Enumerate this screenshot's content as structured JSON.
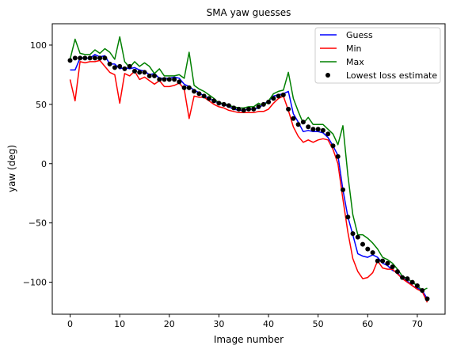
{
  "chart_data": {
    "type": "line",
    "title": "SMA yaw guesses",
    "xlabel": "Image number",
    "ylabel": "yaw (deg)",
    "xlim": [
      -3.6,
      75.6
    ],
    "ylim": [
      -127,
      118
    ],
    "xticks": [
      0,
      10,
      20,
      30,
      40,
      50,
      60,
      70
    ],
    "yticks": [
      -100,
      -50,
      0,
      50,
      100
    ],
    "xtick_labels": [
      "0",
      "10",
      "20",
      "30",
      "40",
      "50",
      "60",
      "70"
    ],
    "ytick_labels": [
      "−100",
      "−50",
      "0",
      "50",
      "100"
    ],
    "grid": false,
    "legend_position": "top-right",
    "x": [
      0,
      1,
      2,
      3,
      4,
      5,
      6,
      7,
      8,
      9,
      10,
      11,
      12,
      13,
      14,
      15,
      16,
      17,
      18,
      19,
      20,
      21,
      22,
      23,
      24,
      25,
      26,
      27,
      28,
      29,
      30,
      31,
      32,
      33,
      34,
      35,
      36,
      37,
      38,
      39,
      40,
      41,
      42,
      43,
      44,
      45,
      46,
      47,
      48,
      49,
      50,
      51,
      52,
      53,
      54,
      55,
      56,
      57,
      58,
      59,
      60,
      61,
      62,
      63,
      64,
      65,
      66,
      67,
      68,
      69,
      70,
      71,
      72
    ],
    "series": [
      {
        "name": "Guess",
        "style": "line",
        "color": "#0000ff",
        "values": [
          79,
          79,
          89,
          89,
          89,
          92,
          90,
          91,
          84,
          84,
          80,
          81,
          80,
          81,
          79,
          78,
          75,
          76,
          72,
          72,
          72,
          73,
          72,
          67,
          65,
          62,
          60,
          57,
          55,
          53,
          51,
          50,
          48,
          46,
          45,
          45,
          46,
          46,
          47,
          50,
          53,
          57,
          58,
          59,
          61,
          42,
          35,
          27,
          28,
          27,
          27,
          26,
          22,
          15,
          7,
          -22,
          -45,
          -60,
          -76,
          -78,
          -79,
          -77,
          -79,
          -84,
          -86,
          -90,
          -92,
          -97,
          -99,
          -103,
          -105,
          -107,
          -114
        ]
      },
      {
        "name": "Min",
        "style": "line",
        "color": "#ff0000",
        "values": [
          71,
          53,
          86,
          85,
          86,
          86,
          87,
          82,
          77,
          75,
          51,
          76,
          74,
          78,
          71,
          73,
          70,
          67,
          70,
          65,
          65,
          66,
          68,
          63,
          38,
          57,
          56,
          56,
          53,
          50,
          48,
          47,
          45,
          44,
          43,
          43,
          43,
          43,
          44,
          44,
          46,
          51,
          55,
          57,
          45,
          31,
          23,
          18,
          20,
          18,
          20,
          21,
          20,
          12,
          0,
          -30,
          -58,
          -80,
          -91,
          -97,
          -96,
          -92,
          -82,
          -88,
          -89,
          -89,
          -93,
          -97,
          -100,
          -103,
          -106,
          -108,
          -117
        ]
      },
      {
        "name": "Max",
        "style": "line",
        "color": "#008000",
        "values": [
          88,
          105,
          93,
          92,
          92,
          96,
          93,
          97,
          94,
          88,
          107,
          86,
          81,
          86,
          82,
          85,
          82,
          76,
          80,
          74,
          74,
          74,
          75,
          72,
          94,
          66,
          63,
          61,
          58,
          55,
          51,
          51,
          49,
          48,
          47,
          47,
          48,
          48,
          51,
          49,
          53,
          59,
          61,
          62,
          77,
          55,
          44,
          34,
          39,
          33,
          33,
          33,
          29,
          25,
          16,
          32,
          -10,
          -43,
          -60,
          -60,
          -63,
          -67,
          -72,
          -79,
          -81,
          -84,
          -89,
          -95,
          -97,
          -100,
          -103,
          -107,
          -105
        ]
      },
      {
        "name": "Lowest loss estimate",
        "style": "scatter",
        "color": "#000000",
        "values": [
          87,
          89,
          89,
          89,
          89,
          89,
          89,
          89,
          84,
          81,
          82,
          80,
          82,
          78,
          77,
          77,
          74,
          74,
          71,
          71,
          71,
          71,
          69,
          64,
          64,
          61,
          59,
          57,
          55,
          53,
          51,
          50,
          49,
          47,
          46,
          45,
          46,
          46,
          48,
          50,
          52,
          55,
          57,
          58,
          46,
          38,
          33,
          35,
          31,
          29,
          29,
          28,
          25,
          15,
          6,
          -22,
          -45,
          -59,
          -62,
          -68,
          -72,
          -75,
          -82,
          -82,
          -84,
          -87,
          -91,
          -96,
          -97,
          -100,
          -103,
          -107,
          -114
        ]
      }
    ]
  }
}
